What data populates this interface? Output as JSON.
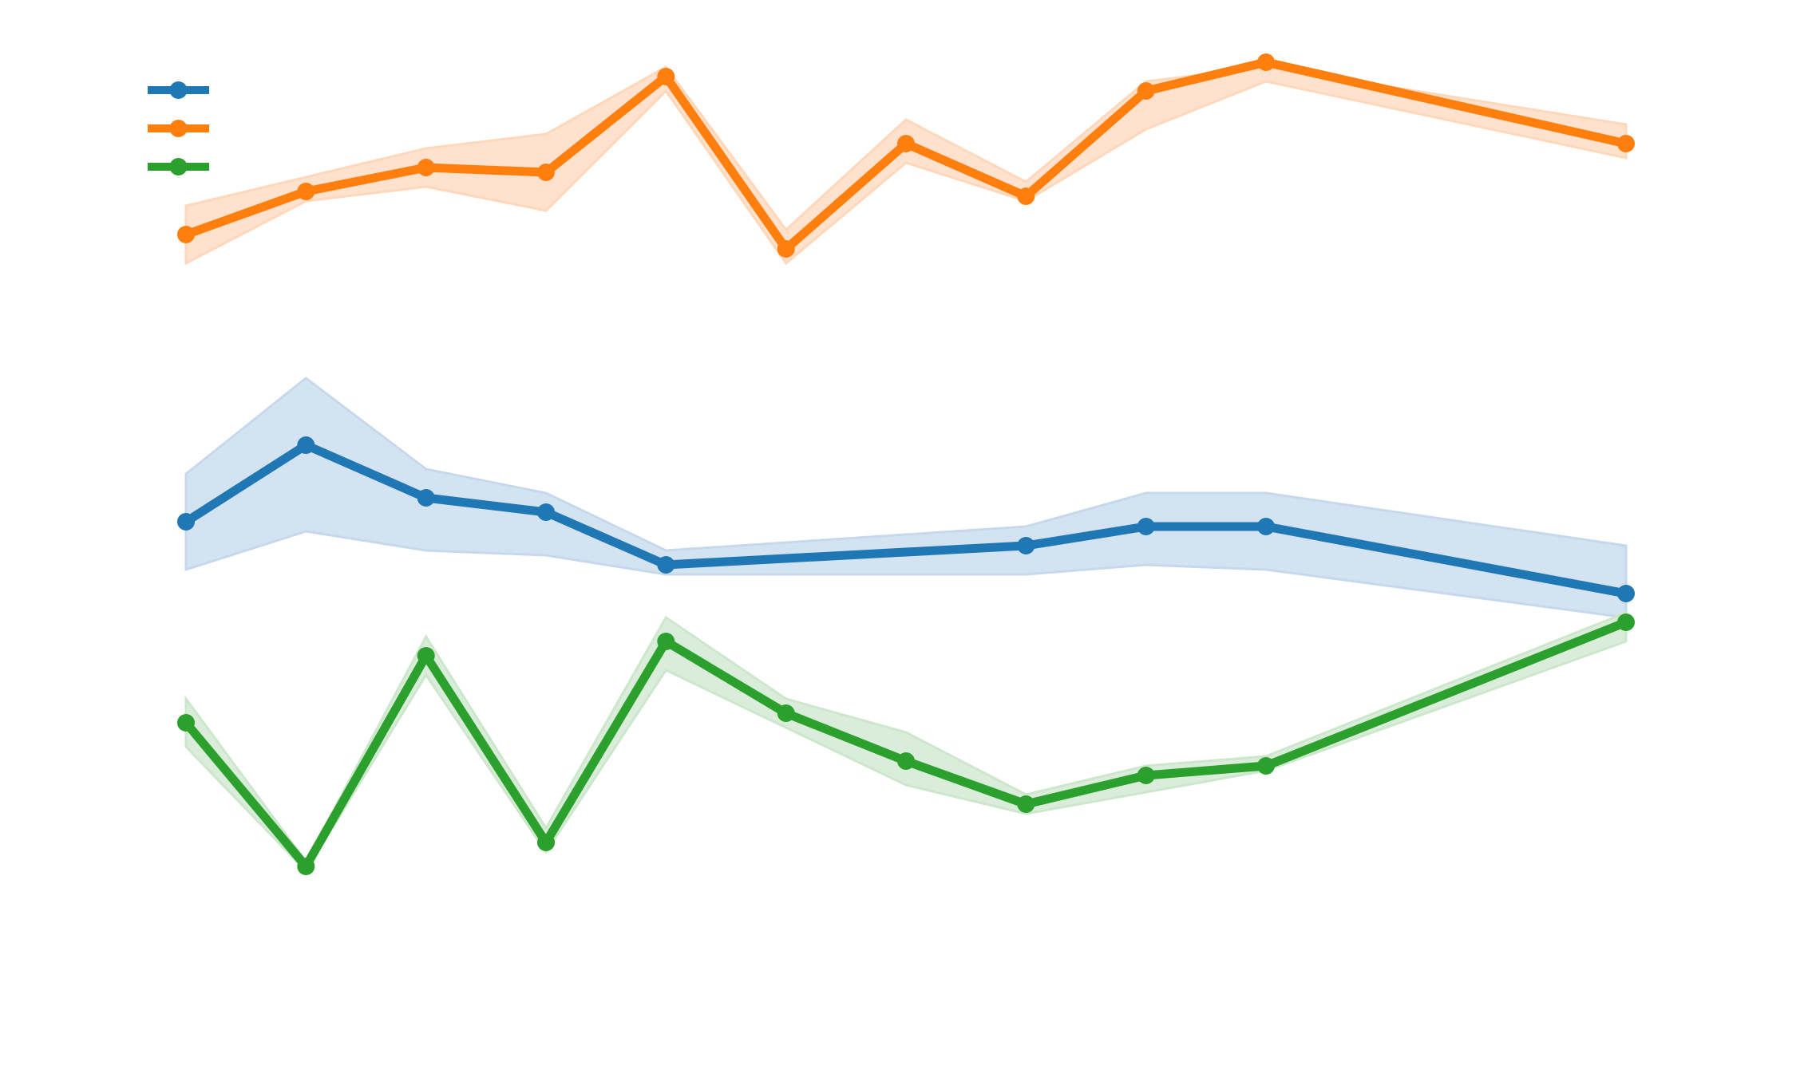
{
  "chart_data": {
    "type": "line",
    "title": "",
    "xlabel": "",
    "ylabel": "",
    "x": [
      0,
      1,
      2,
      3,
      4,
      5,
      6,
      7,
      8,
      9,
      12
    ],
    "xlim": [
      -1.55,
      13.55
    ],
    "ylim": [
      -7.8,
      3.45
    ],
    "grid": false,
    "legend": {
      "placement": "top-left"
    },
    "series": [
      {
        "color": "#1f77b4",
        "band_color": "#c6d9ec",
        "values": [
          -2.0,
          -1.2,
          -1.75,
          -1.9,
          -2.45,
          null,
          null,
          -2.25,
          -2.05,
          -2.05,
          -2.75
        ],
        "lower": [
          -2.5,
          -2.1,
          -2.3,
          -2.35,
          -2.55,
          null,
          null,
          -2.55,
          -2.45,
          -2.5,
          -3.0
        ],
        "upper": [
          -1.5,
          -0.5,
          -1.45,
          -1.7,
          -2.3,
          null,
          null,
          -2.05,
          -1.7,
          -1.7,
          -2.25
        ]
      },
      {
        "color": "#ff7f0e",
        "band_color": "#ffd8bc",
        "values": [
          1.0,
          1.45,
          1.7,
          1.65,
          2.65,
          0.85,
          1.95,
          1.4,
          2.5,
          2.8,
          1.95
        ],
        "lower": [
          0.7,
          1.35,
          1.5,
          1.25,
          2.5,
          0.7,
          1.75,
          1.35,
          2.1,
          2.6,
          1.8
        ],
        "upper": [
          1.3,
          1.6,
          1.9,
          2.05,
          2.75,
          1.05,
          2.2,
          1.55,
          2.6,
          2.75,
          2.15
        ]
      },
      {
        "color": "#2ca02c",
        "band_color": "#cde7cd",
        "values": [
          -4.1,
          -5.6,
          -3.4,
          -5.35,
          -3.25,
          -4.0,
          -4.5,
          -4.95,
          -4.65,
          -4.55,
          -3.05
        ],
        "lower": [
          -4.35,
          -5.65,
          -3.6,
          -5.45,
          -3.55,
          null,
          -4.75,
          -5.05,
          null,
          -4.6,
          -3.25
        ],
        "upper": [
          -3.85,
          -5.55,
          -3.2,
          -5.2,
          -3.0,
          -3.85,
          -4.2,
          -4.85,
          -4.55,
          -4.45,
          -2.95
        ]
      }
    ]
  }
}
